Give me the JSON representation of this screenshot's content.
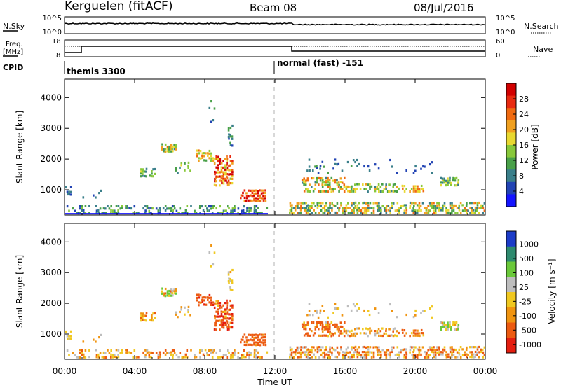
{
  "header": {
    "station": "Kerguelen (fitACF)",
    "beam": "Beam 08",
    "date": "08/Jul/2016"
  },
  "noise_panel": {
    "left_label": "N.Sky",
    "right_label": "N.Search",
    "left_ticks": [
      "10^5",
      "10^0"
    ],
    "right_ticks": [
      "10^5",
      "10^0"
    ]
  },
  "freq_panel": {
    "left_label_top": "Freq.",
    "left_label_bottom": "[MHz]",
    "left_ticks": [
      "18",
      "8"
    ],
    "right_ticks": [
      "60",
      "0"
    ],
    "right_label": "Nave"
  },
  "cpid": {
    "label": "CPID",
    "segments": [
      {
        "start_hour": 0,
        "text": "themis 3300"
      },
      {
        "start_hour": 12,
        "text": "normal (fast) -151"
      }
    ]
  },
  "x_axis": {
    "label": "Time UT",
    "range_hours": [
      0,
      24
    ],
    "ticks": [
      "00:00",
      "04:00",
      "08:00",
      "12:00",
      "16:00",
      "20:00",
      "00:00"
    ]
  },
  "y_axis": {
    "label": "Slant Range [km]",
    "range_km": [
      180,
      4600
    ],
    "ticks": [
      "1000",
      "2000",
      "3000",
      "4000"
    ]
  },
  "power_colorbar": {
    "title": "Power [dB]",
    "ticks": [
      "4",
      "8",
      "12",
      "16",
      "20",
      "24",
      "28"
    ],
    "colors": [
      "#1414ff",
      "#2244b4",
      "#3a7f8a",
      "#49a049",
      "#88c83a",
      "#e8d830",
      "#f0a020",
      "#f06a10",
      "#e82a10",
      "#d20000"
    ]
  },
  "velocity_colorbar": {
    "title": "Velocity [m s⁻¹]",
    "ticks": [
      "1000",
      "500",
      "100",
      "25",
      "-25",
      "-100",
      "-500",
      "-1000"
    ],
    "colors": [
      "#1c3cc8",
      "#2e8a6e",
      "#6ac83a",
      "#bdbdbd",
      "#f0c820",
      "#f09410",
      "#ec5a10",
      "#e41e10"
    ]
  },
  "chart_data": {
    "type": "heatmap",
    "title": "Kerguelen (fitACF)",
    "xlabel": "Time UT",
    "ylabel": "Slant Range [km]",
    "x_range": [
      0,
      24
    ],
    "y_range": [
      180,
      4600
    ],
    "scatter_regions": [
      {
        "t": [
          0.0,
          11.6
        ],
        "r": [
          200,
          500
        ],
        "dens": 0.35,
        "power": [
          4,
          14
        ],
        "vel": [
          -150,
          60
        ]
      },
      {
        "t": [
          0.0,
          0.4
        ],
        "r": [
          800,
          1100
        ],
        "dens": 0.4,
        "power": [
          4,
          10
        ],
        "vel": [
          -60,
          40
        ]
      },
      {
        "t": [
          1.0,
          2.3
        ],
        "r": [
          700,
          1000
        ],
        "dens": 0.2,
        "power": [
          4,
          10
        ],
        "vel": [
          -80,
          40
        ]
      },
      {
        "t": [
          4.3,
          5.2
        ],
        "r": [
          1400,
          1700
        ],
        "dens": 0.5,
        "power": [
          6,
          16
        ],
        "vel": [
          -150,
          30
        ]
      },
      {
        "t": [
          5.5,
          6.4
        ],
        "r": [
          2200,
          2500
        ],
        "dens": 0.6,
        "power": [
          8,
          22
        ],
        "vel": [
          -120,
          200
        ]
      },
      {
        "t": [
          6.3,
          7.2
        ],
        "r": [
          1500,
          1900
        ],
        "dens": 0.35,
        "power": [
          6,
          16
        ],
        "vel": [
          -100,
          80
        ]
      },
      {
        "t": [
          7.5,
          8.5
        ],
        "r": [
          1900,
          2300
        ],
        "dens": 0.6,
        "power": [
          10,
          24
        ],
        "vel": [
          -600,
          -40
        ]
      },
      {
        "t": [
          8.5,
          9.6
        ],
        "r": [
          1100,
          2100
        ],
        "dens": 0.6,
        "power": [
          14,
          30
        ],
        "vel": [
          -700,
          20
        ]
      },
      {
        "t": [
          9.3,
          9.6
        ],
        "r": [
          2400,
          3100
        ],
        "dens": 0.35,
        "power": [
          4,
          12
        ],
        "vel": [
          -40,
          40
        ]
      },
      {
        "t": [
          8.2,
          8.6
        ],
        "r": [
          3000,
          3900
        ],
        "dens": 0.08,
        "power": [
          4,
          10
        ],
        "vel": [
          -60,
          60
        ]
      },
      {
        "t": [
          10.0,
          11.5
        ],
        "r": [
          600,
          1000
        ],
        "dens": 0.85,
        "power": [
          18,
          30
        ],
        "vel": [
          -500,
          -80
        ]
      },
      {
        "t": [
          12.8,
          24.0
        ],
        "r": [
          200,
          600
        ],
        "dens": 0.55,
        "power": [
          6,
          22
        ],
        "vel": [
          -200,
          100
        ]
      },
      {
        "t": [
          13.5,
          16.0
        ],
        "r": [
          900,
          1400
        ],
        "dens": 0.5,
        "power": [
          8,
          24
        ],
        "vel": [
          -400,
          40
        ]
      },
      {
        "t": [
          16.0,
          19.0
        ],
        "r": [
          900,
          1200
        ],
        "dens": 0.35,
        "power": [
          6,
          20
        ],
        "vel": [
          -120,
          60
        ]
      },
      {
        "t": [
          19.0,
          20.5
        ],
        "r": [
          900,
          1150
        ],
        "dens": 0.55,
        "power": [
          12,
          24
        ],
        "vel": [
          -300,
          20
        ]
      },
      {
        "t": [
          21.4,
          22.5
        ],
        "r": [
          1100,
          1400
        ],
        "dens": 0.7,
        "power": [
          6,
          16
        ],
        "vel": [
          -80,
          200
        ]
      },
      {
        "t": [
          13.8,
          21.0
        ],
        "r": [
          1500,
          2000
        ],
        "dens": 0.08,
        "power": [
          4,
          10
        ],
        "vel": [
          -60,
          60
        ]
      }
    ],
    "bottom_line_power": {
      "t": [
        0.0,
        11.6
      ],
      "r": 200,
      "color": "#1414ff"
    }
  }
}
